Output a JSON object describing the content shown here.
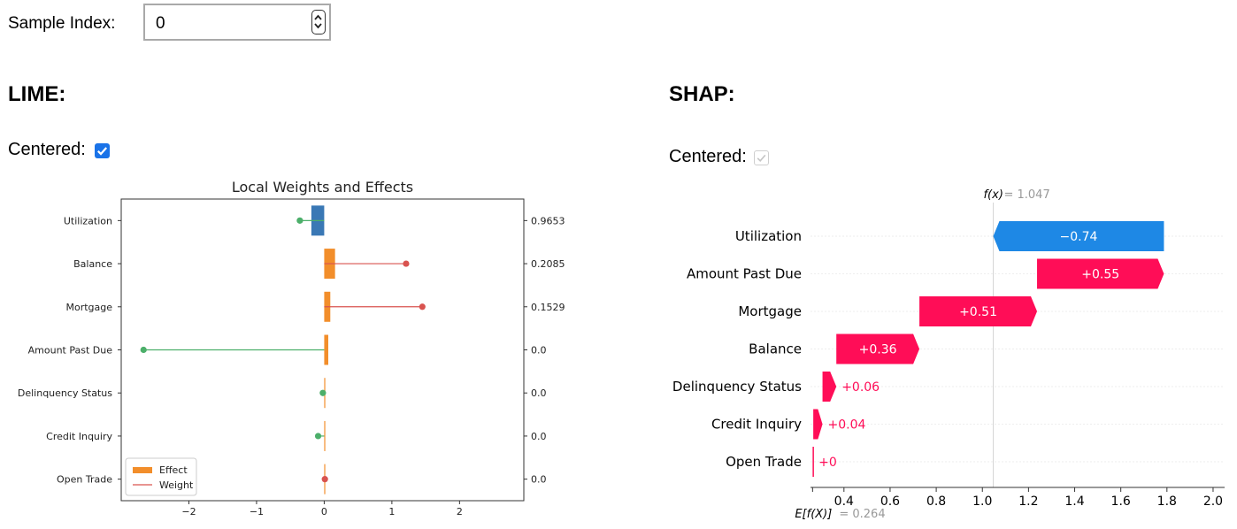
{
  "sample_index": {
    "label": "Sample Index:",
    "value": "0"
  },
  "lime": {
    "title": "LIME:",
    "centered_label": "Centered:",
    "centered_checked": true
  },
  "shap": {
    "title": "SHAP:",
    "centered_label": "Centered:",
    "centered_checked": true,
    "centered_disabled": true
  },
  "chart_data": [
    {
      "type": "bar",
      "title": "Local Weights and Effects",
      "categories": [
        "Utilization",
        "Balance",
        "Mortgage",
        "Amount Past Due",
        "Delinquency Status",
        "Credit Inquiry",
        "Open Trade"
      ],
      "series": [
        {
          "name": "Effect",
          "values": [
            -0.19,
            0.16,
            0.09,
            0.06,
            0.01,
            0.01,
            0.0
          ],
          "color": "#f28e2b"
        },
        {
          "name": "Weight",
          "values": [
            -0.36,
            1.21,
            1.45,
            -2.67,
            -0.02,
            -0.09,
            0.01
          ]
        }
      ],
      "effect_negative_color": "#3a78b5",
      "weight_positive_color": "#d9534f",
      "weight_negative_color": "#4caf6a",
      "right_labels": [
        "0.9653",
        "0.2085",
        "0.1529",
        "0.0",
        "0.0",
        "0.0",
        "0.0"
      ],
      "xlim": [
        -3.0,
        2.95
      ],
      "xticks": [
        -2,
        -1,
        0,
        1,
        2
      ],
      "xtick_labels": [
        "−2",
        "−1",
        "0",
        "1",
        "2"
      ],
      "legend_position": "lower-left"
    },
    {
      "type": "bar",
      "subtype": "waterfall",
      "categories": [
        "Utilization",
        "Amount Past Due",
        "Mortgage",
        "Balance",
        "Delinquency Status",
        "Credit Inquiry",
        "Open Trade"
      ],
      "values": [
        -0.74,
        0.55,
        0.51,
        0.36,
        0.06,
        0.04,
        0.0
      ],
      "value_labels": [
        "−0.74",
        "+0.55",
        "+0.51",
        "+0.36",
        "+0.06",
        "+0.04",
        "+0"
      ],
      "fx_label": "f(x)",
      "fx_value": "= 1.047",
      "base_label": "E[f(X)]",
      "base_value": "= 0.264",
      "fx": 1.047,
      "base": 0.264,
      "xlim": [
        0.255,
        2.05
      ],
      "xticks": [
        0.4,
        0.6,
        0.8,
        1.0,
        1.2,
        1.4,
        1.6,
        1.8,
        2.0
      ],
      "xtick_labels": [
        "0.4",
        "0.6",
        "0.8",
        "1.0",
        "1.2",
        "1.4",
        "1.6",
        "1.8",
        "2.0"
      ],
      "positive_color": "#ff0d57",
      "negative_color": "#1e88e5"
    }
  ]
}
